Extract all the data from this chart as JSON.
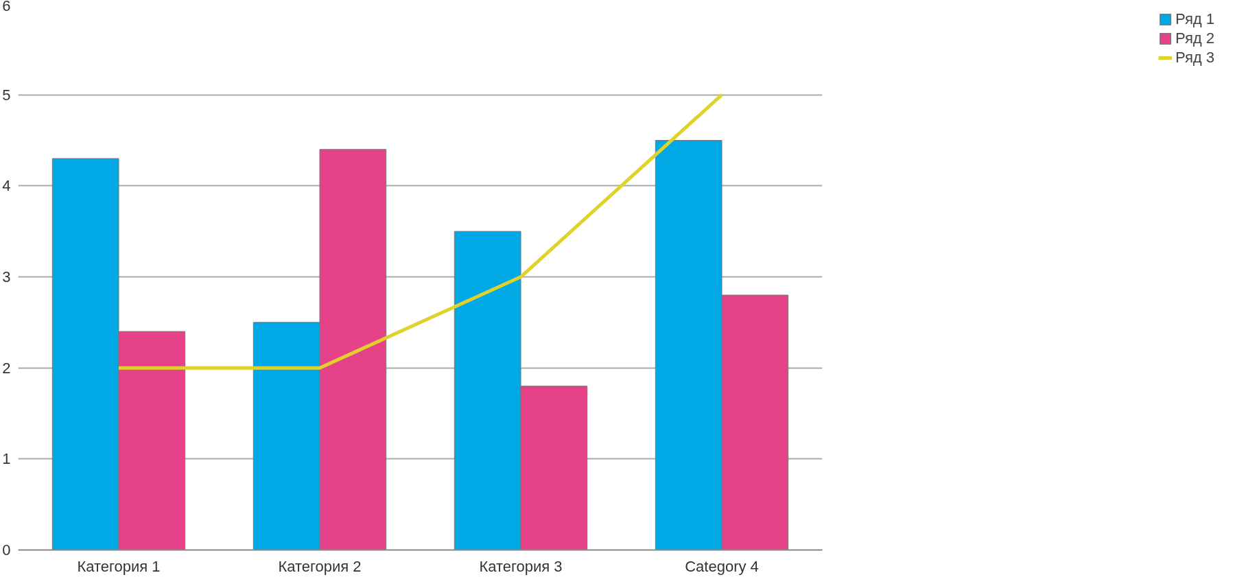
{
  "chart_data": {
    "type": "bar",
    "categories": [
      "Категория 1",
      "Категория 2",
      "Категория 3",
      "Category 4"
    ],
    "series": [
      {
        "name": "Ряд 1",
        "color": "#00a8e6",
        "values": [
          4.3,
          2.5,
          3.5,
          4.5
        ]
      },
      {
        "name": "Ряд 2",
        "color": "#e6428a",
        "values": [
          2.4,
          4.4,
          1.8,
          2.8
        ]
      },
      {
        "name": "Ряд 3",
        "color": "#e0d22a",
        "type": "line",
        "values": [
          2,
          2,
          3,
          5
        ]
      }
    ],
    "ylim": [
      0,
      6
    ],
    "yticks": [
      0,
      1,
      2,
      3,
      4,
      5,
      6
    ],
    "grid": "y",
    "legend": "right"
  }
}
